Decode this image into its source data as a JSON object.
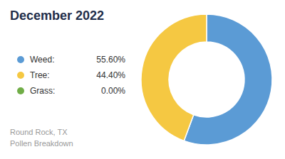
{
  "chart_data": {
    "type": "pie",
    "title": "December 2022",
    "subtitle": "Round Rock, TX\nPollen Breakdown",
    "categories": [
      "Weed:",
      "Tree:",
      "Grass:"
    ],
    "values": [
      55.6,
      44.4,
      0.0
    ],
    "value_labels": [
      "55.60%",
      "44.40%",
      "0.00%"
    ],
    "colors": [
      "#5B9BD5",
      "#F5C842",
      "#70AD47"
    ],
    "legend": "left"
  }
}
